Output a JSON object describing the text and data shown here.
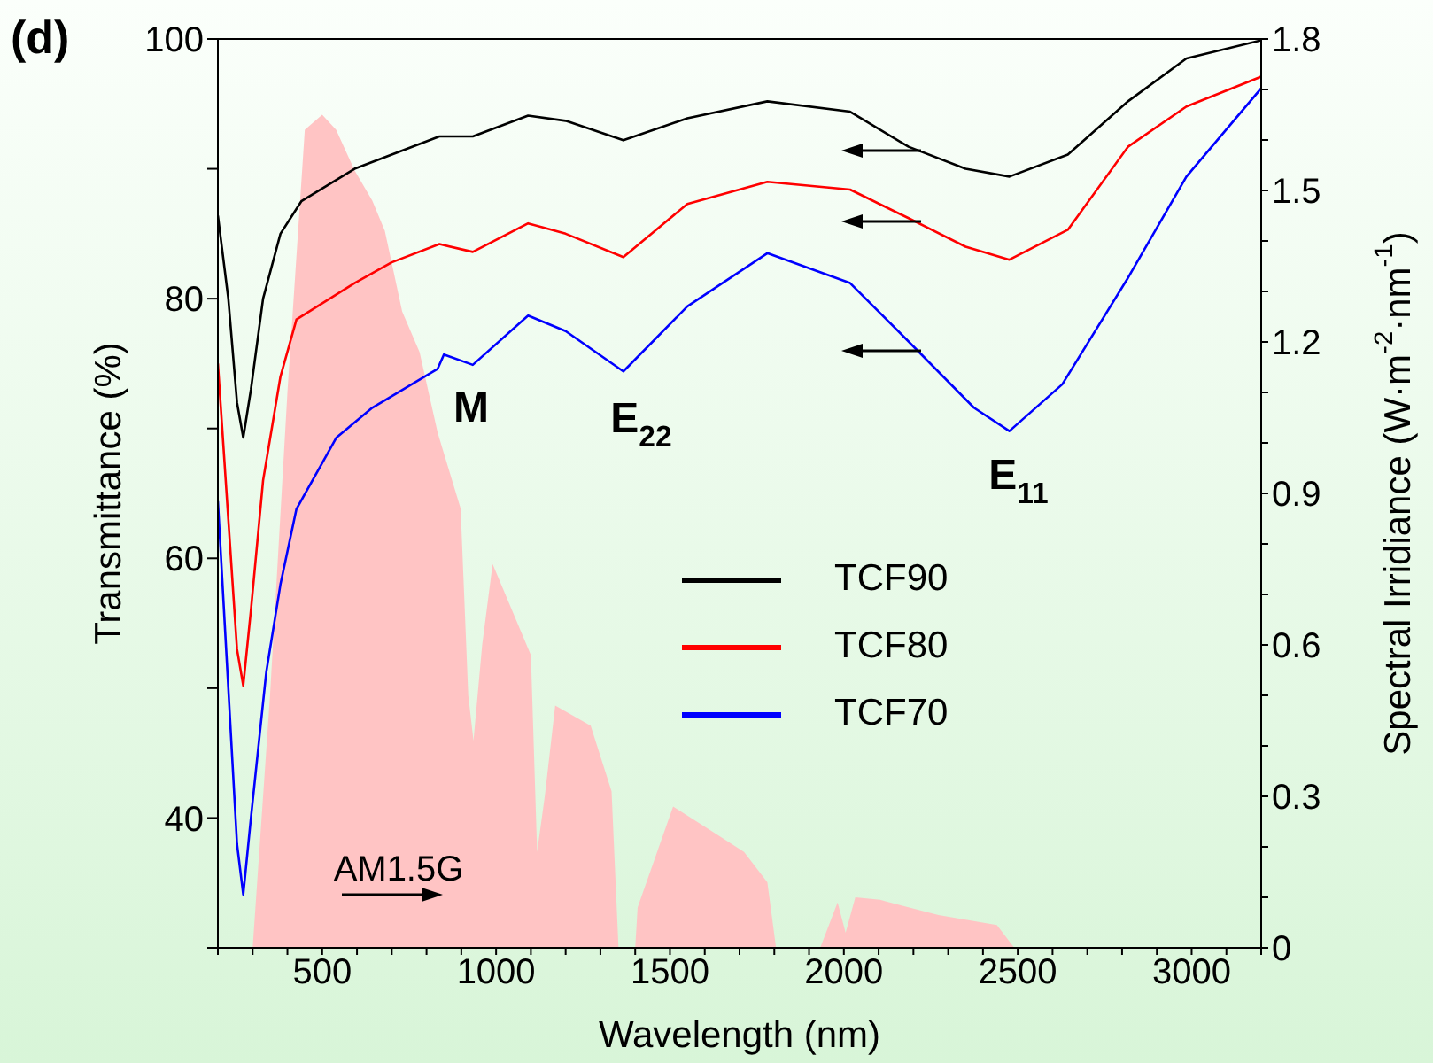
{
  "chart_data": {
    "type": "line",
    "title": "(d)",
    "xlabel": "Wavelength (nm)",
    "ylabel": "Transmittance (%)",
    "y2label": "Spectral Irridiance (W·m$^{-2}$·nm$^{-1}$)",
    "xlim": [
      200,
      3200
    ],
    "xticks": [
      {
        "value": 200,
        "label": null
      },
      {
        "value": 300,
        "label": null
      },
      {
        "value": 400,
        "label": null
      },
      500,
      {
        "value": 600,
        "label": null
      },
      {
        "value": 700,
        "label": null
      },
      {
        "value": 800,
        "label": null
      },
      {
        "value": 900,
        "label": null
      },
      1000,
      {
        "value": 1100,
        "label": null
      },
      {
        "value": 1200,
        "label": null
      },
      {
        "value": 1300,
        "label": null
      },
      {
        "value": 1400,
        "label": null
      },
      1500,
      {
        "value": 1600,
        "label": null
      },
      {
        "value": 1700,
        "label": null
      },
      {
        "value": 1800,
        "label": null
      },
      {
        "value": 1900,
        "label": null
      },
      2000,
      {
        "value": 2100,
        "label": null
      },
      {
        "value": 2200,
        "label": null
      },
      {
        "value": 2300,
        "label": null
      },
      {
        "value": 2400,
        "label": null
      },
      2500,
      {
        "value": 2600,
        "label": null
      },
      {
        "value": 2700,
        "label": null
      },
      {
        "value": 2800,
        "label": null
      },
      {
        "value": 2900,
        "label": null
      },
      3000,
      {
        "value": 3100,
        "label": null
      },
      {
        "value": 3200,
        "label": null
      }
    ],
    "ylim": [
      30,
      100
    ],
    "yticks": [
      {
        "value": 30,
        "label": null
      },
      40,
      {
        "value": 50,
        "label": null
      },
      60,
      {
        "value": 70,
        "label": null
      },
      80,
      {
        "value": 90,
        "label": null
      },
      100
    ],
    "y2lim": [
      0,
      1.8
    ],
    "y2ticks": [
      0,
      {
        "value": 0.1,
        "label": null
      },
      {
        "value": 0.2,
        "label": null
      },
      0.3,
      {
        "value": 0.4,
        "label": null
      },
      {
        "value": 0.5,
        "label": null
      },
      0.6,
      {
        "value": 0.7,
        "label": null
      },
      {
        "value": 0.8,
        "label": null
      },
      0.9,
      {
        "value": 1.0,
        "label": null
      },
      {
        "value": 1.1,
        "label": null
      },
      1.2,
      {
        "value": 1.3,
        "label": null
      },
      {
        "value": 1.4,
        "label": null
      },
      1.5,
      {
        "value": 1.6,
        "label": null
      },
      {
        "value": 1.7,
        "label": null
      },
      1.8
    ],
    "grid": false,
    "legend": "right",
    "marker": "none",
    "line_style": "solid",
    "annotations": [
      "M",
      "E$_{22}$",
      "E$_{11}$",
      "AM1.5G"
    ],
    "series": [
      {
        "type": "area",
        "axis": "y2",
        "color": "#ffc4c4",
        "x": [
          200,
          300,
          350,
          400,
          450,
          500,
          540,
          593,
          644,
          680,
          730,
          780,
          832,
          898,
          920,
          935,
          960,
          990,
          1100,
          1118,
          1140,
          1170,
          1272,
          1332,
          1352,
          1400,
          1407,
          1509,
          1611,
          1713,
          1780,
          1805,
          1932,
          1982,
          2005,
          2033,
          2104,
          2272,
          2440,
          2490,
          3200
        ],
        "values": [
          0,
          0,
          0.5,
          1.1,
          1.62,
          1.65,
          1.62,
          1.54,
          1.48,
          1.42,
          1.26,
          1.18,
          1.02,
          0.87,
          0.5,
          0.41,
          0.6,
          0.76,
          0.58,
          0.19,
          0.3,
          0.48,
          0.44,
          0.31,
          0,
          0,
          0.08,
          0.28,
          0.235,
          0.19,
          0.13,
          0,
          0,
          0.09,
          0.03,
          0.1,
          0.095,
          0.065,
          0.045,
          0,
          0
        ]
      },
      {
        "name": "TCF90",
        "color": "#000000",
        "x": [
          200,
          230,
          255,
          273,
          295,
          330,
          380,
          440,
          593,
          700,
          837,
          933,
          1092,
          1200,
          1366,
          1550,
          1780,
          2018,
          2186,
          2350,
          2476,
          2644,
          2817,
          2985,
          3200
        ],
        "values": [
          86.4,
          80,
          72,
          69.3,
          73,
          80,
          85,
          87.5,
          90,
          91.1,
          92.5,
          92.5,
          94.1,
          93.7,
          92.2,
          93.9,
          95.2,
          94.4,
          91.7,
          90,
          89.4,
          91.1,
          95.2,
          98.5,
          99.9
        ]
      },
      {
        "name": "TCF80",
        "color": "#ff0000",
        "x": [
          200,
          230,
          255,
          273,
          295,
          330,
          380,
          426,
          593,
          700,
          837,
          933,
          1092,
          1200,
          1366,
          1550,
          1780,
          2018,
          2186,
          2350,
          2476,
          2644,
          2817,
          2985,
          3200
        ],
        "values": [
          75,
          63,
          53,
          50.2,
          56,
          66,
          74,
          78.4,
          81.2,
          82.8,
          84.2,
          83.6,
          85.8,
          85,
          83.2,
          87.3,
          89,
          88.4,
          86.2,
          84,
          83,
          85.3,
          91.7,
          94.8,
          97.1
        ]
      },
      {
        "name": "TCF70",
        "color": "#0000ff",
        "x": [
          200,
          230,
          255,
          273,
          295,
          339,
          380,
          426,
          541,
          644,
          832,
          850,
          933,
          1092,
          1200,
          1366,
          1550,
          1780,
          2018,
          2186,
          2374,
          2476,
          2628,
          2817,
          2985,
          3200
        ],
        "values": [
          64.4,
          50,
          38,
          34.1,
          40,
          51.2,
          58,
          63.8,
          69.3,
          71.6,
          74.6,
          75.7,
          74.9,
          78.7,
          77.5,
          74.4,
          79.4,
          83.5,
          81.2,
          76.7,
          71.6,
          69.8,
          73.4,
          81.6,
          89.4,
          96.2
        ]
      }
    ]
  }
}
